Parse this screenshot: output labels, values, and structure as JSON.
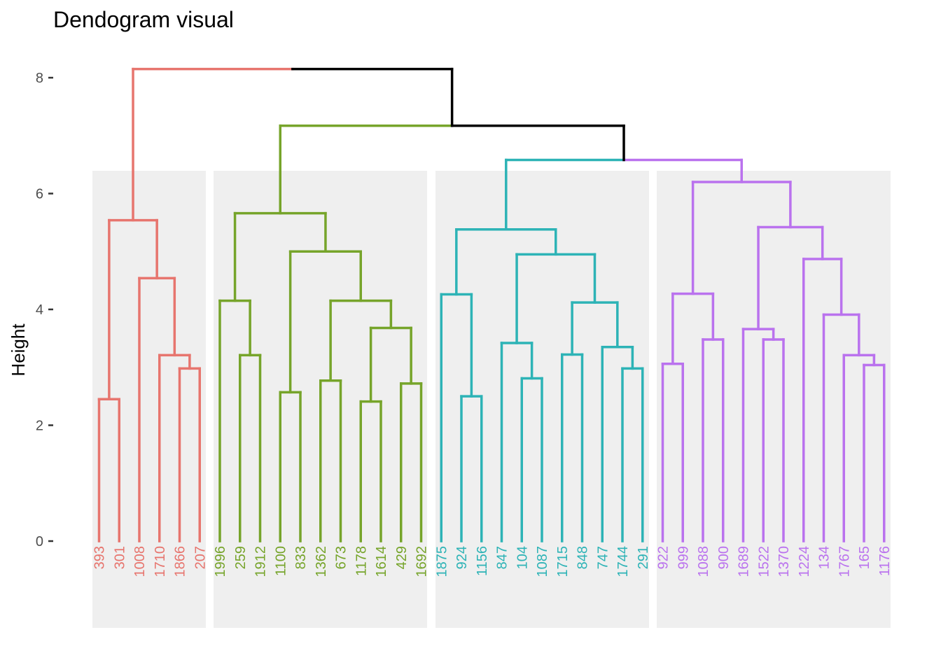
{
  "chart_data": {
    "type": "dendrogram",
    "title": "Dendogram visual",
    "ylabel": "Height",
    "xlabel": "",
    "ylim": [
      0,
      8.3
    ],
    "yticks": [
      0,
      2,
      4,
      6,
      8
    ],
    "grid": false,
    "cluster_colors": [
      "#E7756E",
      "#76A42A",
      "#2DB3B6",
      "#BA72EE"
    ],
    "top_color": "#000000",
    "clusters": [
      {
        "leaves": [
          "393",
          "301",
          "1008",
          "1710",
          "1866",
          "207"
        ]
      },
      {
        "leaves": [
          "1996",
          "259",
          "1912",
          "1100",
          "833",
          "1362",
          "673",
          "1178",
          "1614",
          "429",
          "1692"
        ]
      },
      {
        "leaves": [
          "1875",
          "924",
          "1156",
          "847",
          "104",
          "1087",
          "1715",
          "848",
          "747",
          "1744",
          "291"
        ]
      },
      {
        "leaves": [
          "922",
          "999",
          "1088",
          "900",
          "1689",
          "1522",
          "1370",
          "1224",
          "134",
          "1767",
          "165",
          "1176"
        ]
      }
    ],
    "merges": [
      {
        "id": "r1",
        "a": "393",
        "b": "301",
        "h": 2.45,
        "cluster": 0
      },
      {
        "id": "r2",
        "a": "1866",
        "b": "207",
        "h": 2.98,
        "cluster": 0
      },
      {
        "id": "r3",
        "a": "1710",
        "b": "r2",
        "h": 3.21,
        "cluster": 0
      },
      {
        "id": "r4",
        "a": "1008",
        "b": "r3",
        "h": 4.54,
        "cluster": 0
      },
      {
        "id": "r5",
        "a": "r1",
        "b": "r4",
        "h": 5.54,
        "cluster": 0
      },
      {
        "id": "g1",
        "a": "259",
        "b": "1912",
        "h": 3.21,
        "cluster": 1
      },
      {
        "id": "g2",
        "a": "1996",
        "b": "g1",
        "h": 4.15,
        "cluster": 1
      },
      {
        "id": "g3",
        "a": "1100",
        "b": "833",
        "h": 2.57,
        "cluster": 1
      },
      {
        "id": "g4",
        "a": "1362",
        "b": "673",
        "h": 2.77,
        "cluster": 1
      },
      {
        "id": "g5",
        "a": "1178",
        "b": "1614",
        "h": 2.41,
        "cluster": 1
      },
      {
        "id": "g6",
        "a": "429",
        "b": "1692",
        "h": 2.72,
        "cluster": 1
      },
      {
        "id": "g7",
        "a": "g5",
        "b": "g6",
        "h": 3.68,
        "cluster": 1
      },
      {
        "id": "g8",
        "a": "g4",
        "b": "g7",
        "h": 4.15,
        "cluster": 1
      },
      {
        "id": "g9",
        "a": "g3",
        "b": "g8",
        "h": 5.0,
        "cluster": 1
      },
      {
        "id": "g10",
        "a": "g2",
        "b": "g9",
        "h": 5.66,
        "cluster": 1
      },
      {
        "id": "c1",
        "a": "924",
        "b": "1156",
        "h": 2.5,
        "cluster": 2
      },
      {
        "id": "c2",
        "a": "1875",
        "b": "c1",
        "h": 4.26,
        "cluster": 2
      },
      {
        "id": "c3",
        "a": "104",
        "b": "1087",
        "h": 2.81,
        "cluster": 2
      },
      {
        "id": "c4",
        "a": "847",
        "b": "c3",
        "h": 3.42,
        "cluster": 2
      },
      {
        "id": "c5",
        "a": "1715",
        "b": "848",
        "h": 3.22,
        "cluster": 2
      },
      {
        "id": "c6",
        "a": "1744",
        "b": "291",
        "h": 2.98,
        "cluster": 2
      },
      {
        "id": "c7",
        "a": "747",
        "b": "c6",
        "h": 3.35,
        "cluster": 2
      },
      {
        "id": "c8",
        "a": "c5",
        "b": "c7",
        "h": 4.12,
        "cluster": 2
      },
      {
        "id": "c9",
        "a": "c4",
        "b": "c8",
        "h": 4.95,
        "cluster": 2
      },
      {
        "id": "c10",
        "a": "c2",
        "b": "c9",
        "h": 5.38,
        "cluster": 2
      },
      {
        "id": "p1",
        "a": "922",
        "b": "999",
        "h": 3.06,
        "cluster": 3
      },
      {
        "id": "p2",
        "a": "1088",
        "b": "900",
        "h": 3.48,
        "cluster": 3
      },
      {
        "id": "p3",
        "a": "p1",
        "b": "p2",
        "h": 4.27,
        "cluster": 3
      },
      {
        "id": "p4",
        "a": "1522",
        "b": "1370",
        "h": 3.48,
        "cluster": 3
      },
      {
        "id": "p5",
        "a": "1689",
        "b": "p4",
        "h": 3.66,
        "cluster": 3
      },
      {
        "id": "p6",
        "a": "165",
        "b": "1176",
        "h": 3.04,
        "cluster": 3
      },
      {
        "id": "p7",
        "a": "1767",
        "b": "p6",
        "h": 3.21,
        "cluster": 3
      },
      {
        "id": "p8",
        "a": "134",
        "b": "p7",
        "h": 3.91,
        "cluster": 3
      },
      {
        "id": "p9",
        "a": "1224",
        "b": "p8",
        "h": 4.87,
        "cluster": 3
      },
      {
        "id": "p10",
        "a": "p5",
        "b": "p9",
        "h": 5.42,
        "cluster": 3
      },
      {
        "id": "p11",
        "a": "p3",
        "b": "p10",
        "h": 6.2,
        "cluster": 3
      },
      {
        "id": "t1",
        "a": "c10",
        "b": "p11",
        "h": 6.58,
        "cluster": 2,
        "mixed": true
      },
      {
        "id": "t2",
        "a": "g10",
        "b": "t1",
        "h": 7.17,
        "cluster": 1,
        "mixed": true
      },
      {
        "id": "t3",
        "a": "r5",
        "b": "t2",
        "h": 8.15,
        "cluster": 0,
        "mixed": true
      }
    ]
  }
}
